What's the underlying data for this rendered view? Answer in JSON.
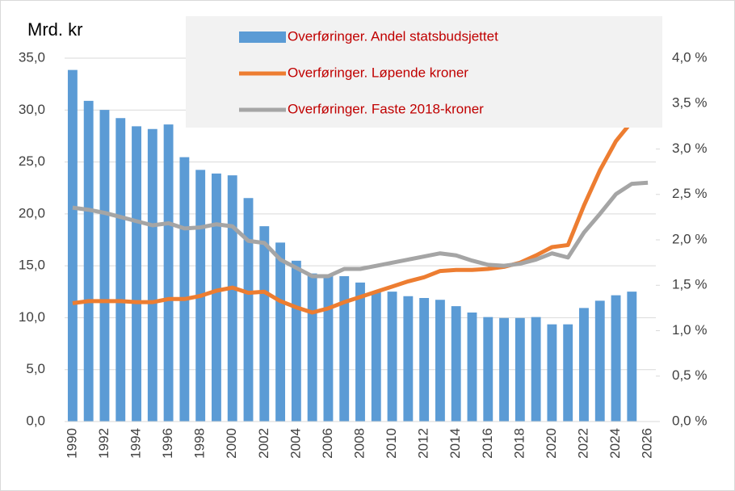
{
  "chart_data": {
    "type": "bar-line",
    "y_label": "Mrd. kr",
    "categories": [
      "1990",
      null,
      "1992",
      null,
      "1994",
      null,
      "1996",
      null,
      "1998",
      null,
      "2000",
      null,
      "2002",
      null,
      "2004",
      null,
      "2006",
      null,
      "2008",
      null,
      "2010",
      null,
      "2012",
      null,
      "2014",
      null,
      "2016",
      null,
      "2018",
      null,
      "2020",
      null,
      "2022",
      null,
      "2024",
      null,
      "2026"
    ],
    "series": [
      {
        "name": "Overføringer. Andel statsbudsjettet",
        "type": "bar",
        "axis": "y2",
        "color": "#5b9bd5",
        "values": [
          3.87,
          3.53,
          3.43,
          3.34,
          3.25,
          3.22,
          3.27,
          2.91,
          2.77,
          2.73,
          2.71,
          2.46,
          2.15,
          1.97,
          1.77,
          1.63,
          1.6,
          1.6,
          1.53,
          1.43,
          1.43,
          1.38,
          1.36,
          1.34,
          1.27,
          1.2,
          1.15,
          1.14,
          1.14,
          1.15,
          1.07,
          1.07,
          1.25,
          1.33,
          1.39,
          1.43,
          null
        ]
      },
      {
        "name": "Overføringer. Løpende kroner",
        "type": "line",
        "color": "#ed7d31",
        "values": [
          11.4,
          11.6,
          11.6,
          11.6,
          11.5,
          11.5,
          11.8,
          11.8,
          12.1,
          12.6,
          12.9,
          12.4,
          12.5,
          11.6,
          11.0,
          10.5,
          10.9,
          11.5,
          12.0,
          12.5,
          13.0,
          13.5,
          13.9,
          14.5,
          14.6,
          14.6,
          14.7,
          14.9,
          15.3,
          16.0,
          16.8,
          17.0,
          20.8,
          24.2,
          27.0,
          28.9,
          29.7
        ]
      },
      {
        "name": "Overføringer. Faste 2018-kroner",
        "type": "line",
        "color": "#a5a5a5",
        "values": [
          20.6,
          20.4,
          20.1,
          19.7,
          19.3,
          18.9,
          19.1,
          18.6,
          18.7,
          19.0,
          18.8,
          17.4,
          17.2,
          15.6,
          14.8,
          14.0,
          14.0,
          14.7,
          14.7,
          15.0,
          15.3,
          15.6,
          15.9,
          16.2,
          16.0,
          15.5,
          15.1,
          15.0,
          15.2,
          15.6,
          16.2,
          15.8,
          18.2,
          20.0,
          21.9,
          22.9,
          23.0
        ]
      }
    ],
    "ylim": [
      0,
      35
    ],
    "yticks": [
      {
        "value": 0,
        "label": "0,0"
      },
      {
        "value": 5,
        "label": "5,0"
      },
      {
        "value": 10,
        "label": "10,0"
      },
      {
        "value": 15,
        "label": "15,0"
      },
      {
        "value": 20,
        "label": "20,0"
      },
      {
        "value": 25,
        "label": "25,0"
      },
      {
        "value": 30,
        "label": "30,0"
      },
      {
        "value": 35,
        "label": "35,0"
      }
    ],
    "y2lim": [
      0,
      4
    ],
    "y2ticks": [
      {
        "value": 0,
        "label": "0,0 %"
      },
      {
        "value": 0.5,
        "label": "0,5 %"
      },
      {
        "value": 1,
        "label": "1,0 %"
      },
      {
        "value": 1.5,
        "label": "1,5 %"
      },
      {
        "value": 2,
        "label": "2,0 %"
      },
      {
        "value": 2.5,
        "label": "2,5 %"
      },
      {
        "value": 3,
        "label": "3,0 %"
      },
      {
        "value": 3.5,
        "label": "3,5 %"
      },
      {
        "value": 4,
        "label": "4,0 %"
      }
    ],
    "grid": true
  }
}
